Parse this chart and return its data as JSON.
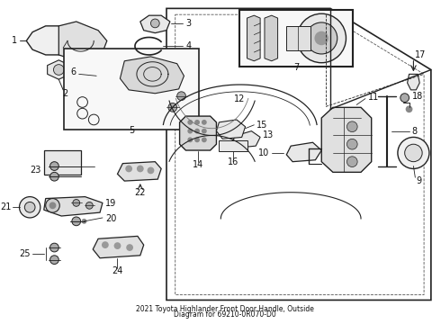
{
  "title": "2021 Toyota Highlander Front Door Handle, Outside\nDiagram for 69210-0R070-D0",
  "bg_color": "#ffffff",
  "line_color": "#222222",
  "text_color": "#111111",
  "fig_width": 4.9,
  "fig_height": 3.6,
  "dpi": 100
}
